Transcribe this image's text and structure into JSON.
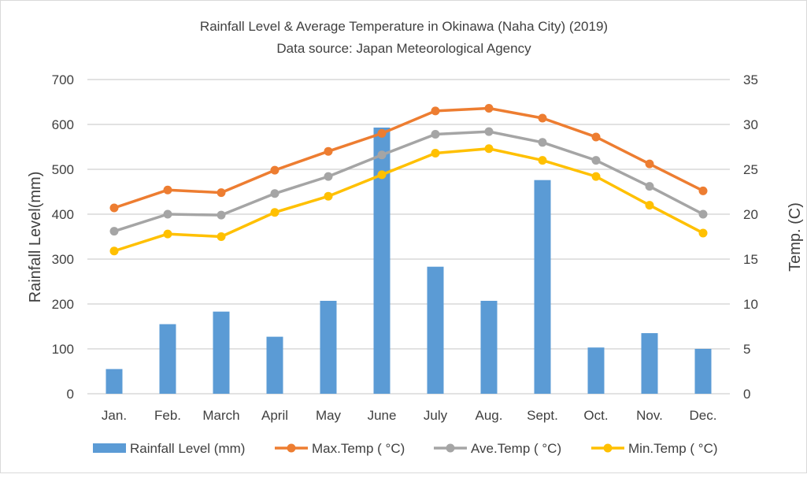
{
  "chart_data": {
    "type": "bar+line",
    "title": "Rainfall Level & Average Temperature in Okinawa (Naha City) (2019)",
    "subtitle": "Data source:  Japan Meteorological Agency",
    "categories": [
      "Jan.",
      "Feb.",
      "March",
      "April",
      "May",
      "June",
      "July",
      "Aug.",
      "Sept.",
      "Oct.",
      "Nov.",
      "Dec."
    ],
    "ylabel": "Rainfall  Level(mm)",
    "y2label": "Temp.  (C)",
    "ylim": [
      0,
      700
    ],
    "y2lim": [
      0,
      35
    ],
    "yticks": [
      "0",
      "100",
      "200",
      "300",
      "400",
      "500",
      "600",
      "700"
    ],
    "y2ticks": [
      "0",
      "5",
      "10",
      "15",
      "20",
      "25",
      "30",
      "35"
    ],
    "grid": true,
    "legend_position": "bottom",
    "series": [
      {
        "name": "Rainfall Level (mm)",
        "type": "bar",
        "axis": "left",
        "color": "#5b9bd5",
        "values": [
          55,
          155,
          183,
          127,
          207,
          593,
          283,
          207,
          476,
          103,
          135,
          100
        ]
      },
      {
        "name": "Max.Temp ( °C)",
        "type": "line",
        "axis": "right",
        "color": "#ed7d31",
        "values": [
          20.7,
          22.7,
          22.4,
          24.9,
          27.0,
          29.0,
          31.5,
          31.8,
          30.7,
          28.6,
          25.6,
          22.6
        ]
      },
      {
        "name": "Ave.Temp ( °C)",
        "type": "line",
        "axis": "right",
        "color": "#a5a5a5",
        "values": [
          18.1,
          20.0,
          19.9,
          22.3,
          24.2,
          26.6,
          28.9,
          29.2,
          28.0,
          26.0,
          23.1,
          20.0
        ]
      },
      {
        "name": "Min.Temp ( °C)",
        "type": "line",
        "axis": "right",
        "color": "#ffc000",
        "values": [
          15.9,
          17.8,
          17.5,
          20.2,
          22.0,
          24.4,
          26.8,
          27.3,
          26.0,
          24.2,
          21.0,
          17.9
        ]
      }
    ]
  }
}
